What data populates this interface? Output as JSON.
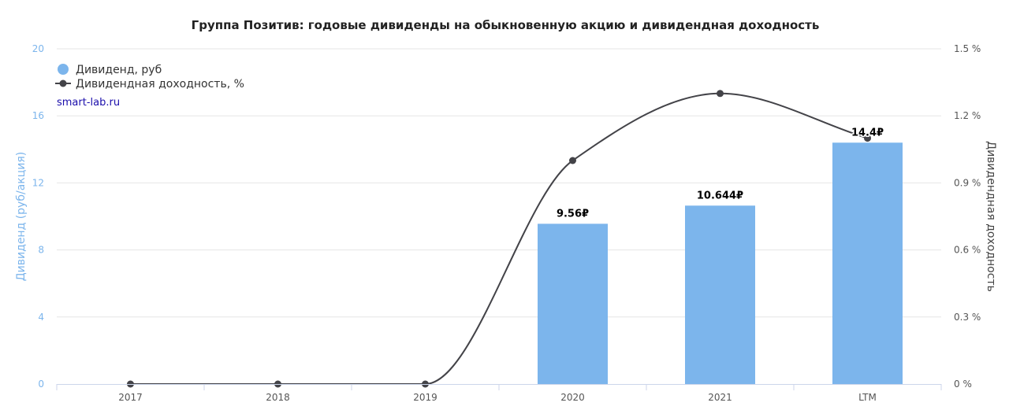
{
  "chart_data": {
    "type": "bar",
    "title": "Группа Позитив: годовые дивиденды на обыкновенную акцию и дивидендная доходность",
    "credit": "smart-lab.ru",
    "categories": [
      "2017",
      "2018",
      "2019",
      "2020",
      "2021",
      "LTM"
    ],
    "series": [
      {
        "name": "Дивиденд, руб",
        "type": "bar",
        "axis": "left",
        "values": [
          0,
          0,
          0,
          9.56,
          10.644,
          14.4
        ],
        "labels": [
          "",
          "",
          "",
          "9.56₽",
          "10.644₽",
          "14.4₽"
        ],
        "color": "#7cb5ec"
      },
      {
        "name": "Дивидендная доходность, %",
        "type": "line",
        "axis": "right",
        "values": [
          0,
          0,
          0,
          1.0,
          1.3,
          1.1
        ],
        "color": "#434348"
      }
    ],
    "y_left": {
      "label": "Дивиденд (руб/акция)",
      "ylim": [
        0,
        20
      ],
      "ticks": [
        "0",
        "4",
        "8",
        "12",
        "16",
        "20"
      ]
    },
    "y_right": {
      "label": "Дивидендная доходность",
      "ylim": [
        0,
        1.5
      ],
      "ticks": [
        "0 %",
        "0.3 %",
        "0.6 %",
        "0.9 %",
        "1.2 %",
        "1.5 %"
      ]
    },
    "grid": true,
    "legend": "top-left"
  }
}
